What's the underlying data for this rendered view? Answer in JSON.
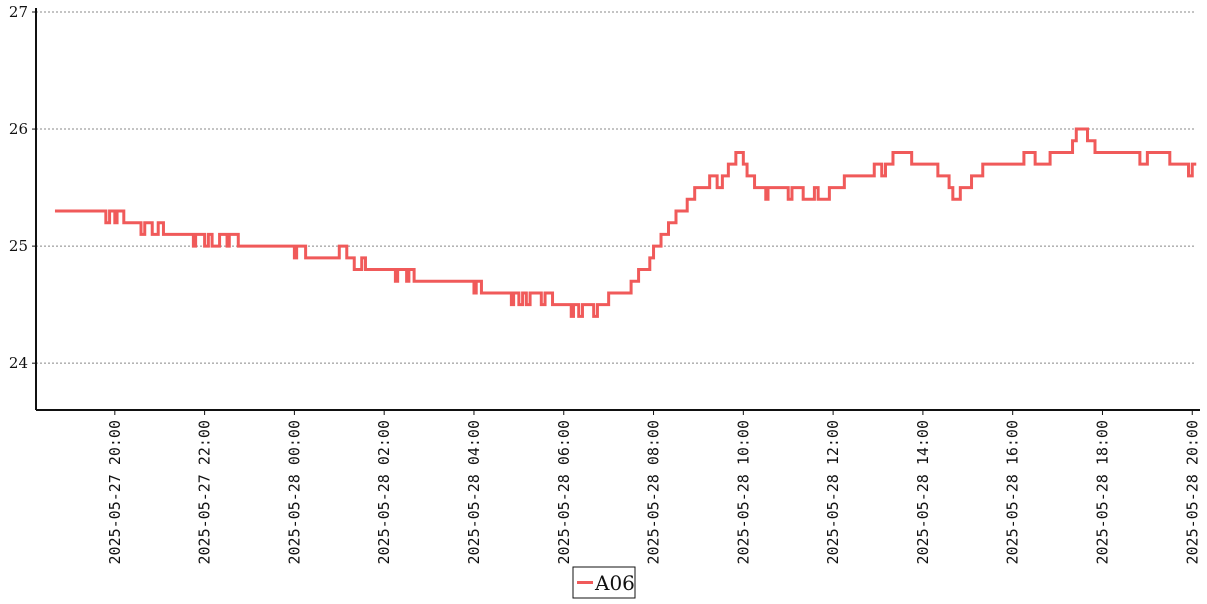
{
  "chart_data": {
    "type": "line",
    "title": "",
    "xlabel": "",
    "ylabel": "",
    "ylim": [
      23.6,
      27.0
    ],
    "xlim": [
      "2025-05-27 18:20",
      "2025-05-28 20:05"
    ],
    "grid": "horizontal dotted",
    "legend_position": "bottom-center",
    "y_ticks": [
      "24",
      "25",
      "26",
      "27"
    ],
    "x_ticks": [
      "2025-05-27 20:00",
      "2025-05-27 22:00",
      "2025-05-28 00:00",
      "2025-05-28 02:00",
      "2025-05-28 04:00",
      "2025-05-28 06:00",
      "2025-05-28 08:00",
      "2025-05-28 10:00",
      "2025-05-28 12:00",
      "2025-05-28 14:00",
      "2025-05-28 16:00",
      "2025-05-28 18:00",
      "2025-05-28 20:00"
    ],
    "series": [
      {
        "name": "A06",
        "color": "#f05a5a",
        "x": [
          "2025-05-27 18:40",
          "2025-05-27 19:45",
          "2025-05-27 19:48",
          "2025-05-27 19:53",
          "2025-05-27 20:00",
          "2025-05-27 20:03",
          "2025-05-27 20:12",
          "2025-05-27 20:15",
          "2025-05-27 20:35",
          "2025-05-27 20:40",
          "2025-05-27 20:50",
          "2025-05-27 20:58",
          "2025-05-27 21:05",
          "2025-05-27 21:10",
          "2025-05-27 21:45",
          "2025-05-27 21:48",
          "2025-05-27 22:00",
          "2025-05-27 22:05",
          "2025-05-27 22:10",
          "2025-05-27 22:20",
          "2025-05-27 22:30",
          "2025-05-27 22:33",
          "2025-05-27 22:45",
          "2025-05-27 22:50",
          "2025-05-28 00:00",
          "2025-05-28 00:03",
          "2025-05-28 00:15",
          "2025-05-28 00:20",
          "2025-05-28 01:00",
          "2025-05-28 01:10",
          "2025-05-28 01:20",
          "2025-05-28 01:30",
          "2025-05-28 01:35",
          "2025-05-28 01:45",
          "2025-05-28 02:15",
          "2025-05-28 02:18",
          "2025-05-28 02:30",
          "2025-05-28 02:33",
          "2025-05-28 02:40",
          "2025-05-28 02:50",
          "2025-05-28 04:00",
          "2025-05-28 04:03",
          "2025-05-28 04:10",
          "2025-05-28 04:20",
          "2025-05-28 04:50",
          "2025-05-28 04:53",
          "2025-05-28 05:00",
          "2025-05-28 05:05",
          "2025-05-28 05:10",
          "2025-05-28 05:15",
          "2025-05-28 05:30",
          "2025-05-28 05:35",
          "2025-05-28 05:45",
          "2025-05-28 05:50",
          "2025-05-28 06:10",
          "2025-05-28 06:13",
          "2025-05-28 06:20",
          "2025-05-28 06:25",
          "2025-05-28 06:40",
          "2025-05-28 06:45",
          "2025-05-28 07:00",
          "2025-05-28 07:10",
          "2025-05-28 07:30",
          "2025-05-28 07:40",
          "2025-05-28 07:55",
          "2025-05-28 08:00",
          "2025-05-28 08:10",
          "2025-05-28 08:20",
          "2025-05-28 08:30",
          "2025-05-28 08:35",
          "2025-05-28 08:45",
          "2025-05-28 08:55",
          "2025-05-28 09:05",
          "2025-05-28 09:15",
          "2025-05-28 09:25",
          "2025-05-28 09:32",
          "2025-05-28 09:35",
          "2025-05-28 09:40",
          "2025-05-28 09:50",
          "2025-05-28 10:00",
          "2025-05-28 10:05",
          "2025-05-28 10:15",
          "2025-05-28 10:30",
          "2025-05-28 10:33",
          "2025-05-28 10:45",
          "2025-05-28 11:00",
          "2025-05-28 11:05",
          "2025-05-28 11:10",
          "2025-05-28 11:20",
          "2025-05-28 11:35",
          "2025-05-28 11:40",
          "2025-05-28 11:55",
          "2025-05-28 12:00",
          "2025-05-28 12:15",
          "2025-05-28 12:50",
          "2025-05-28 12:55",
          "2025-05-28 13:05",
          "2025-05-28 13:10",
          "2025-05-28 13:20",
          "2025-05-28 13:45",
          "2025-05-28 13:50",
          "2025-05-28 14:20",
          "2025-05-28 14:35",
          "2025-05-28 14:40",
          "2025-05-28 14:50",
          "2025-05-28 15:05",
          "2025-05-28 15:20",
          "2025-05-28 15:30",
          "2025-05-28 15:50",
          "2025-05-28 16:00",
          "2025-05-28 16:15",
          "2025-05-28 16:30",
          "2025-05-28 16:50",
          "2025-05-28 17:05",
          "2025-05-28 17:15",
          "2025-05-28 17:20",
          "2025-05-28 17:25",
          "2025-05-28 17:40",
          "2025-05-28 17:50",
          "2025-05-28 18:10",
          "2025-05-28 18:50",
          "2025-05-28 19:00",
          "2025-05-28 19:30",
          "2025-05-28 19:35",
          "2025-05-28 19:55",
          "2025-05-28 20:00"
        ],
        "values": [
          25.3,
          25.3,
          25.2,
          25.3,
          25.2,
          25.3,
          25.2,
          25.2,
          25.1,
          25.2,
          25.1,
          25.2,
          25.1,
          25.1,
          25.0,
          25.1,
          25.0,
          25.1,
          25.0,
          25.1,
          25.0,
          25.1,
          25.0,
          25.0,
          24.9,
          25.0,
          24.9,
          24.9,
          25.0,
          24.9,
          24.8,
          24.9,
          24.8,
          24.8,
          24.7,
          24.8,
          24.7,
          24.8,
          24.7,
          24.7,
          24.6,
          24.7,
          24.6,
          24.6,
          24.5,
          24.6,
          24.5,
          24.6,
          24.5,
          24.6,
          24.5,
          24.6,
          24.5,
          24.5,
          24.4,
          24.5,
          24.4,
          24.5,
          24.4,
          24.5,
          24.6,
          24.6,
          24.7,
          24.8,
          24.9,
          25.0,
          25.1,
          25.2,
          25.3,
          25.3,
          25.4,
          25.5,
          25.5,
          25.6,
          25.5,
          25.6,
          25.6,
          25.7,
          25.8,
          25.7,
          25.6,
          25.5,
          25.4,
          25.5,
          25.5,
          25.4,
          25.5,
          25.5,
          25.4,
          25.5,
          25.4,
          25.5,
          25.5,
          25.6,
          25.6,
          25.7,
          25.6,
          25.7,
          25.8,
          25.7,
          25.7,
          25.6,
          25.5,
          25.4,
          25.5,
          25.6,
          25.7,
          25.7,
          25.7,
          25.7,
          25.8,
          25.7,
          25.8,
          25.8,
          25.8,
          25.9,
          26.0,
          25.9,
          25.8,
          25.8,
          25.7,
          25.8,
          25.7,
          25.7,
          25.6,
          25.7
        ]
      }
    ]
  }
}
